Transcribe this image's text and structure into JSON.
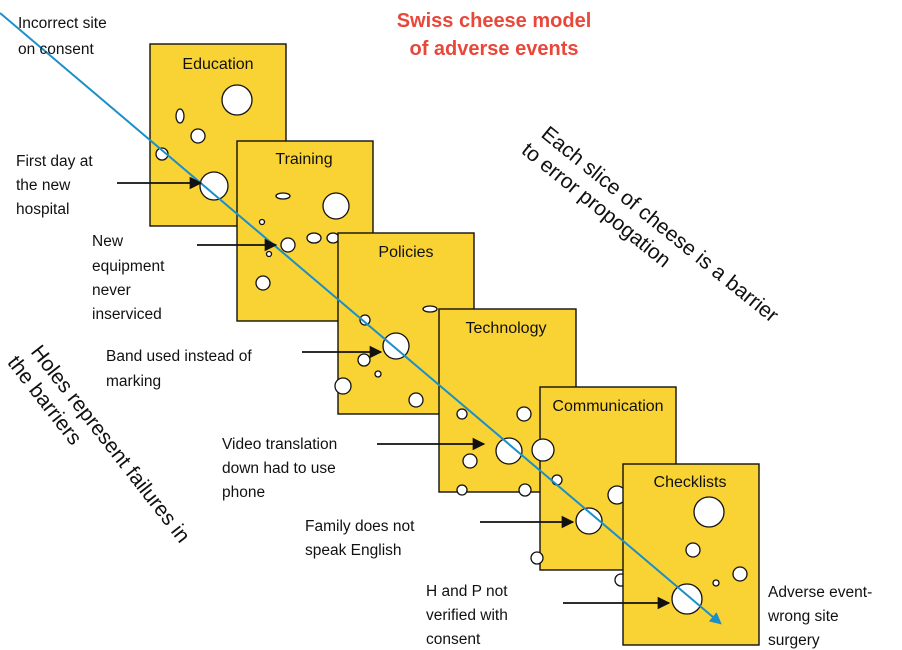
{
  "title": {
    "line1": "Swiss cheese model",
    "line2": "of adverse events",
    "color": "#E8473A"
  },
  "colors": {
    "cheese": "#F9D233",
    "path": "#1B8FC8",
    "arrow": "#111111"
  },
  "slices": [
    {
      "label": "Education"
    },
    {
      "label": "Training"
    },
    {
      "label": "Policies"
    },
    {
      "label": "Technology"
    },
    {
      "label": "Communication"
    },
    {
      "label": "Checklists"
    }
  ],
  "annotations": {
    "incorrect_site": [
      "Incorrect site",
      "on consent"
    ],
    "first_day": [
      "First day at",
      "the new",
      "hospital"
    ],
    "new_equipment": [
      "New",
      "equipment",
      "never",
      "inserviced"
    ],
    "band_used": [
      "Band used instead of",
      "marking"
    ],
    "video_translation": [
      "Video translation",
      "down had to use",
      "phone"
    ],
    "family": [
      "Family does not",
      "speak English"
    ],
    "h_and_p": [
      "H and P not",
      "verified with",
      "consent"
    ],
    "adverse_event": [
      "Adverse event-",
      "wrong site",
      "surgery"
    ]
  },
  "captions": {
    "barrier": [
      "Each slice of cheese is a barrier",
      "to error propogation"
    ],
    "holes": [
      "Holes represent failures in",
      "the barriers"
    ]
  }
}
